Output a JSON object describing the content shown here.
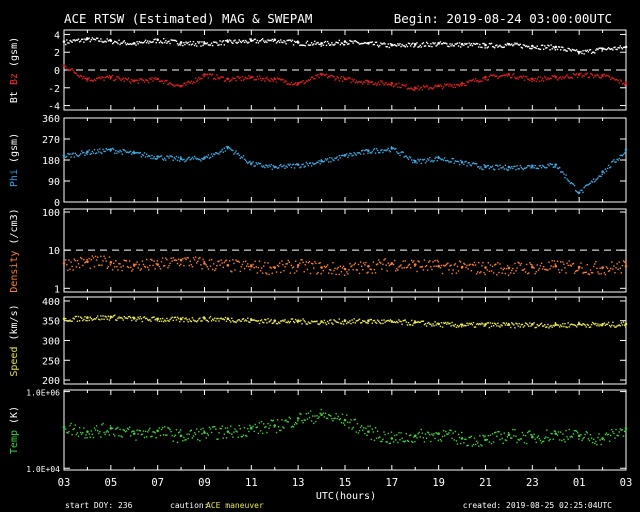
{
  "header": {
    "title": "ACE RTSW (Estimated) MAG & SWEPAM",
    "begin": "Begin: 2019-08-24 03:00:00UTC"
  },
  "footer": {
    "start_doy": "start DOY: 236",
    "caution_label": "caution:",
    "caution_value": "ACE maneuver",
    "created": "created: 2019-08-25 02:25:04UTC"
  },
  "chart_data": {
    "type": "scatter",
    "xlabel": "UTC(hours)",
    "x_ticks": [
      "03",
      "05",
      "07",
      "09",
      "11",
      "13",
      "15",
      "17",
      "19",
      "21",
      "23",
      "01",
      "03"
    ],
    "xlim": [
      0,
      24
    ],
    "panels": [
      {
        "ylabel_parts": [
          {
            "text": "Bt",
            "color": "#ffffff"
          },
          {
            "text": " ",
            "color": "#ffffff"
          },
          {
            "text": "Bz",
            "color": "#ff3030"
          },
          {
            "text": " (gsm)",
            "color": "#ffffff"
          }
        ],
        "ylim": [
          -4.5,
          4.5
        ],
        "y_ticks": [
          {
            "v": 4,
            "label": "4"
          },
          {
            "v": 2,
            "label": "2"
          },
          {
            "v": 0,
            "label": "0"
          },
          {
            "v": -2,
            "label": "-2"
          },
          {
            "v": -4,
            "label": "-4"
          }
        ],
        "dashed": [
          0
        ],
        "scale": "linear",
        "series": [
          {
            "color": "#ffffff",
            "points": [
              [
                0,
                3.2
              ],
              [
                1,
                3.5
              ],
              [
                2,
                3.3
              ],
              [
                3,
                3.0
              ],
              [
                4,
                3.4
              ],
              [
                5,
                3.1
              ],
              [
                6,
                3.0
              ],
              [
                7,
                3.2
              ],
              [
                8,
                3.3
              ],
              [
                9,
                3.4
              ],
              [
                10,
                3.1
              ],
              [
                11,
                3.0
              ],
              [
                12,
                3.2
              ],
              [
                13,
                3.0
              ],
              [
                14,
                2.8
              ],
              [
                15,
                2.9
              ],
              [
                16,
                3.0
              ],
              [
                17,
                2.9
              ],
              [
                18,
                2.8
              ],
              [
                19,
                2.9
              ],
              [
                20,
                2.7
              ],
              [
                21,
                2.6
              ],
              [
                22,
                2.0
              ],
              [
                23,
                2.4
              ],
              [
                24,
                2.6
              ]
            ]
          },
          {
            "color": "#e02020",
            "points": [
              [
                0,
                0.5
              ],
              [
                1,
                -1.0
              ],
              [
                2,
                -0.8
              ],
              [
                3,
                -1.2
              ],
              [
                4,
                -1.0
              ],
              [
                5,
                -1.8
              ],
              [
                6,
                -0.5
              ],
              [
                7,
                -1.0
              ],
              [
                8,
                -0.8
              ],
              [
                9,
                -1.0
              ],
              [
                10,
                -1.5
              ],
              [
                11,
                -0.5
              ],
              [
                12,
                -1.0
              ],
              [
                13,
                -1.3
              ],
              [
                14,
                -1.5
              ],
              [
                15,
                -2.0
              ],
              [
                16,
                -1.8
              ],
              [
                17,
                -1.5
              ],
              [
                18,
                -0.8
              ],
              [
                19,
                -0.5
              ],
              [
                20,
                -1.0
              ],
              [
                21,
                -0.8
              ],
              [
                22,
                -0.5
              ],
              [
                23,
                -0.6
              ],
              [
                24,
                -1.5
              ]
            ]
          }
        ]
      },
      {
        "ylabel_parts": [
          {
            "text": "Phi",
            "color": "#30a0e0"
          },
          {
            "text": " (gsm)",
            "color": "#ffffff"
          }
        ],
        "ylim": [
          0,
          360
        ],
        "y_ticks": [
          {
            "v": 360,
            "label": "360"
          },
          {
            "v": 270,
            "label": "270"
          },
          {
            "v": 180,
            "label": "180"
          },
          {
            "v": 90,
            "label": "90"
          },
          {
            "v": 0,
            "label": "0"
          }
        ],
        "dashed": [],
        "scale": "linear",
        "series": [
          {
            "color": "#3fa9e0",
            "points": [
              [
                0,
                200
              ],
              [
                1,
                215
              ],
              [
                2,
                225
              ],
              [
                3,
                210
              ],
              [
                4,
                195
              ],
              [
                5,
                185
              ],
              [
                6,
                190
              ],
              [
                7,
                235
              ],
              [
                8,
                165
              ],
              [
                9,
                150
              ],
              [
                10,
                160
              ],
              [
                11,
                175
              ],
              [
                12,
                200
              ],
              [
                13,
                220
              ],
              [
                14,
                230
              ],
              [
                15,
                175
              ],
              [
                16,
                190
              ],
              [
                17,
                170
              ],
              [
                18,
                150
              ],
              [
                19,
                150
              ],
              [
                20,
                155
              ],
              [
                21,
                160
              ],
              [
                22,
                40
              ],
              [
                23,
                130
              ],
              [
                24,
                225
              ]
            ]
          }
        ]
      },
      {
        "ylabel_parts": [
          {
            "text": "Density",
            "color": "#ff8030"
          },
          {
            "text": " (/cm3)",
            "color": "#ffffff"
          }
        ],
        "ylim": [
          0.8,
          120
        ],
        "y_ticks": [
          {
            "v": 100,
            "label": "100"
          },
          {
            "v": 10,
            "label": "10"
          },
          {
            "v": 1,
            "label": "1"
          }
        ],
        "dashed": [
          10
        ],
        "scale": "log",
        "series": [
          {
            "color": "#ff8030",
            "points": [
              [
                0,
                4.5
              ],
              [
                1,
                5.0
              ],
              [
                2,
                4.8
              ],
              [
                3,
                4.0
              ],
              [
                4,
                4.2
              ],
              [
                5,
                5.5
              ],
              [
                6,
                4.5
              ],
              [
                7,
                4.0
              ],
              [
                8,
                3.8
              ],
              [
                9,
                3.5
              ],
              [
                10,
                4.0
              ],
              [
                11,
                3.5
              ],
              [
                12,
                3.2
              ],
              [
                13,
                3.8
              ],
              [
                14,
                4.5
              ],
              [
                15,
                4.2
              ],
              [
                16,
                3.8
              ],
              [
                17,
                3.6
              ],
              [
                18,
                3.5
              ],
              [
                19,
                3.4
              ],
              [
                20,
                3.6
              ],
              [
                21,
                3.8
              ],
              [
                22,
                3.6
              ],
              [
                23,
                3.5
              ],
              [
                24,
                3.8
              ]
            ]
          }
        ]
      },
      {
        "ylabel_parts": [
          {
            "text": "Speed",
            "color": "#e0e040"
          },
          {
            "text": " (km/s)",
            "color": "#ffffff"
          }
        ],
        "ylim": [
          190,
          410
        ],
        "y_ticks": [
          {
            "v": 400,
            "label": "400"
          },
          {
            "v": 350,
            "label": "350"
          },
          {
            "v": 300,
            "label": "300"
          },
          {
            "v": 250,
            "label": "250"
          },
          {
            "v": 200,
            "label": "200"
          }
        ],
        "dashed": [],
        "scale": "linear",
        "series": [
          {
            "color": "#e8e850",
            "points": [
              [
                0,
                355
              ],
              [
                1,
                358
              ],
              [
                2,
                360
              ],
              [
                3,
                356
              ],
              [
                4,
                355
              ],
              [
                5,
                354
              ],
              [
                6,
                356
              ],
              [
                7,
                355
              ],
              [
                8,
                352
              ],
              [
                9,
                350
              ],
              [
                10,
                350
              ],
              [
                11,
                348
              ],
              [
                12,
                350
              ],
              [
                13,
                350
              ],
              [
                14,
                348
              ],
              [
                15,
                346
              ],
              [
                16,
                342
              ],
              [
                17,
                340
              ],
              [
                18,
                341
              ],
              [
                19,
                340
              ],
              [
                20,
                341
              ],
              [
                21,
                340
              ],
              [
                22,
                342
              ],
              [
                23,
                341
              ],
              [
                24,
                342
              ]
            ]
          }
        ]
      },
      {
        "ylabel_parts": [
          {
            "text": "Temp",
            "color": "#40d040"
          },
          {
            "text": " (K)",
            "color": "#ffffff"
          }
        ],
        "ylim": [
          9000,
          1100000
        ],
        "y_ticks": [
          {
            "v": 1000000,
            "label": "1.0E+06"
          },
          {
            "v": 10000,
            "label": "1.0E+04"
          }
        ],
        "dashed": [],
        "scale": "log",
        "series": [
          {
            "color": "#40d040",
            "points": [
              [
                0,
                120000
              ],
              [
                1,
                90000
              ],
              [
                2,
                110000
              ],
              [
                3,
                80000
              ],
              [
                4,
                95000
              ],
              [
                5,
                70000
              ],
              [
                6,
                85000
              ],
              [
                7,
                90000
              ],
              [
                8,
                110000
              ],
              [
                9,
                130000
              ],
              [
                10,
                200000
              ],
              [
                11,
                250000
              ],
              [
                12,
                180000
              ],
              [
                13,
                90000
              ],
              [
                14,
                60000
              ],
              [
                15,
                70000
              ],
              [
                16,
                80000
              ],
              [
                17,
                60000
              ],
              [
                18,
                55000
              ],
              [
                19,
                75000
              ],
              [
                20,
                65000
              ],
              [
                21,
                80000
              ],
              [
                22,
                70000
              ],
              [
                23,
                60000
              ],
              [
                24,
                110000
              ]
            ]
          }
        ]
      }
    ]
  }
}
